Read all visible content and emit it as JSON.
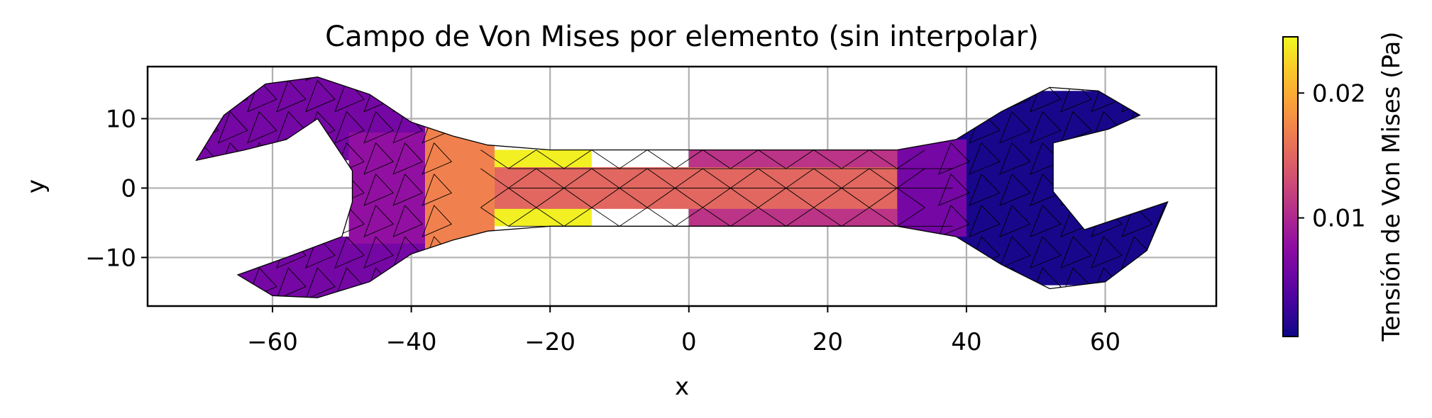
{
  "chart_data": {
    "type": "heatmap",
    "title": "Campo de Von Mises por elemento (sin interpolar)",
    "xlabel": "x",
    "ylabel": "y",
    "xlim": [
      -78,
      76
    ],
    "ylim": [
      -17,
      17.5
    ],
    "xticks": [
      -60,
      -40,
      -20,
      0,
      20,
      40,
      60
    ],
    "xtick_labels": [
      "−60",
      "−40",
      "−20",
      "0",
      "20",
      "40",
      "60"
    ],
    "yticks": [
      -10,
      0,
      10
    ],
    "ytick_labels": [
      "−10",
      "0",
      "10"
    ],
    "grid": true,
    "colormap": "plasma",
    "colorbar": {
      "label": "Tensión de Von Mises (Pa)",
      "range": [
        0.0005,
        0.0245
      ],
      "ticks": [
        0.01,
        0.02
      ],
      "tick_labels": [
        "0.01",
        "0.02"
      ]
    },
    "regions": [
      {
        "name": "left-jaw-upper",
        "x_range": [
          -71,
          -38
        ],
        "y_range": [
          4,
          16
        ],
        "stress": 0.006
      },
      {
        "name": "left-jaw-lower",
        "x_range": [
          -65,
          -38
        ],
        "y_range": [
          -16,
          -7
        ],
        "stress": 0.006
      },
      {
        "name": "left-head-core",
        "x_range": [
          -49,
          -38
        ],
        "y_range": [
          -8,
          8
        ],
        "stress": 0.008
      },
      {
        "name": "neck-left",
        "x_range": [
          -38,
          -28
        ],
        "y_range": [
          -9,
          9
        ],
        "stress": 0.017
      },
      {
        "name": "handle-edge-peak",
        "x_range": [
          -28,
          -14
        ],
        "y_range": [
          -5.5,
          5.5
        ],
        "stress": 0.024
      },
      {
        "name": "handle-center",
        "x_range": [
          -28,
          30
        ],
        "y_range": [
          -3,
          3
        ],
        "stress": 0.015
      },
      {
        "name": "handle-right",
        "x_range": [
          0,
          30
        ],
        "y_range": [
          -5.5,
          5.5
        ],
        "stress": 0.011
      },
      {
        "name": "right-neck",
        "x_range": [
          30,
          40
        ],
        "y_range": [
          -7,
          7
        ],
        "stress": 0.006
      },
      {
        "name": "right-head",
        "x_range": [
          38,
          70
        ],
        "y_range": [
          -14,
          14
        ],
        "stress": 0.001
      }
    ]
  }
}
